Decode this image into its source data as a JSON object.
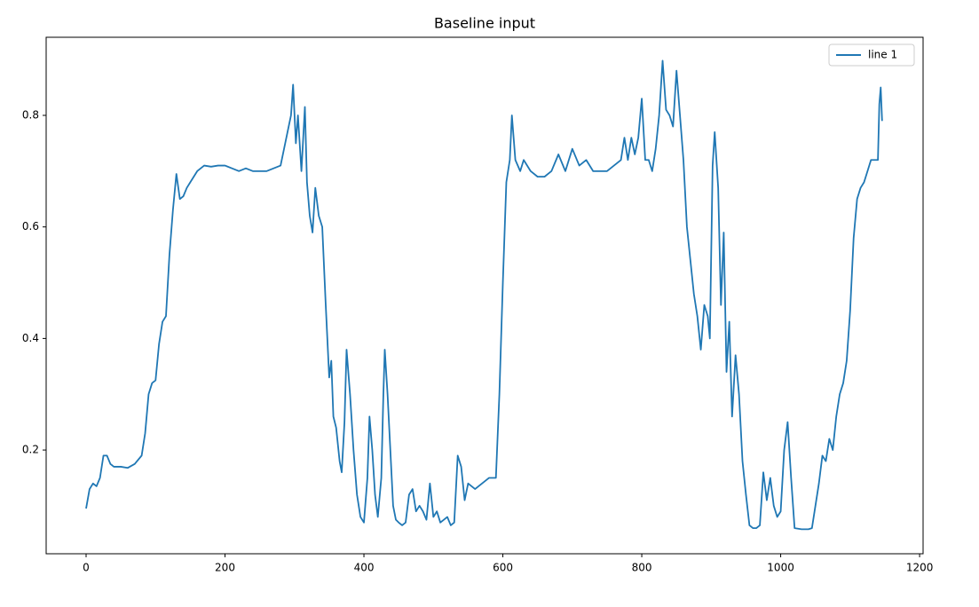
{
  "chart_data": {
    "type": "line",
    "title": "Baseline input",
    "x": [
      0,
      5,
      10,
      15,
      20,
      25,
      30,
      35,
      40,
      50,
      60,
      70,
      80,
      85,
      90,
      95,
      100,
      105,
      110,
      115,
      120,
      125,
      130,
      135,
      140,
      145,
      150,
      160,
      170,
      180,
      190,
      200,
      210,
      220,
      230,
      240,
      250,
      260,
      270,
      280,
      285,
      290,
      295,
      298,
      302,
      305,
      310,
      315,
      318,
      322,
      326,
      330,
      335,
      340,
      345,
      350,
      353,
      356,
      360,
      365,
      368,
      372,
      375,
      380,
      385,
      390,
      395,
      400,
      405,
      408,
      412,
      416,
      420,
      425,
      428,
      430,
      434,
      438,
      442,
      446,
      450,
      455,
      460,
      465,
      470,
      475,
      480,
      485,
      490,
      495,
      500,
      505,
      510,
      520,
      525,
      530,
      535,
      540,
      545,
      550,
      560,
      570,
      580,
      590,
      595,
      600,
      605,
      610,
      613,
      618,
      625,
      630,
      640,
      650,
      660,
      670,
      680,
      690,
      700,
      710,
      720,
      730,
      740,
      750,
      760,
      770,
      775,
      780,
      785,
      790,
      795,
      800,
      805,
      810,
      815,
      820,
      825,
      830,
      835,
      840,
      845,
      850,
      855,
      860,
      865,
      870,
      875,
      880,
      885,
      890,
      895,
      898,
      902,
      905,
      910,
      914,
      918,
      922,
      926,
      930,
      935,
      940,
      945,
      950,
      955,
      960,
      965,
      970,
      975,
      980,
      985,
      990,
      995,
      1000,
      1005,
      1010,
      1015,
      1020,
      1030,
      1040,
      1045,
      1050,
      1055,
      1060,
      1065,
      1070,
      1075,
      1080,
      1085,
      1090,
      1095,
      1100,
      1105,
      1110,
      1115,
      1120,
      1125,
      1130,
      1135,
      1140,
      1142,
      1144,
      1146
    ],
    "series": [
      {
        "name": "line 1",
        "color": "#1f77b4",
        "values": [
          0.095,
          0.13,
          0.14,
          0.135,
          0.15,
          0.19,
          0.19,
          0.175,
          0.17,
          0.17,
          0.168,
          0.175,
          0.19,
          0.23,
          0.3,
          0.32,
          0.325,
          0.39,
          0.43,
          0.44,
          0.55,
          0.63,
          0.695,
          0.65,
          0.655,
          0.67,
          0.68,
          0.7,
          0.71,
          0.708,
          0.71,
          0.71,
          0.705,
          0.7,
          0.705,
          0.7,
          0.7,
          0.7,
          0.705,
          0.71,
          0.74,
          0.77,
          0.8,
          0.855,
          0.75,
          0.8,
          0.7,
          0.815,
          0.68,
          0.62,
          0.59,
          0.67,
          0.62,
          0.6,
          0.46,
          0.33,
          0.36,
          0.26,
          0.24,
          0.18,
          0.16,
          0.25,
          0.38,
          0.3,
          0.2,
          0.12,
          0.08,
          0.07,
          0.15,
          0.26,
          0.2,
          0.12,
          0.08,
          0.15,
          0.3,
          0.38,
          0.3,
          0.2,
          0.1,
          0.075,
          0.07,
          0.065,
          0.07,
          0.12,
          0.13,
          0.09,
          0.1,
          0.09,
          0.075,
          0.14,
          0.08,
          0.09,
          0.07,
          0.08,
          0.065,
          0.07,
          0.19,
          0.17,
          0.11,
          0.14,
          0.13,
          0.14,
          0.15,
          0.15,
          0.3,
          0.5,
          0.68,
          0.72,
          0.8,
          0.72,
          0.7,
          0.72,
          0.7,
          0.69,
          0.69,
          0.7,
          0.73,
          0.7,
          0.74,
          0.71,
          0.72,
          0.7,
          0.7,
          0.7,
          0.71,
          0.72,
          0.76,
          0.72,
          0.76,
          0.73,
          0.76,
          0.83,
          0.72,
          0.72,
          0.7,
          0.74,
          0.8,
          0.898,
          0.81,
          0.8,
          0.78,
          0.88,
          0.8,
          0.72,
          0.6,
          0.54,
          0.48,
          0.44,
          0.38,
          0.46,
          0.44,
          0.4,
          0.71,
          0.77,
          0.67,
          0.46,
          0.59,
          0.34,
          0.43,
          0.26,
          0.37,
          0.3,
          0.18,
          0.12,
          0.065,
          0.06,
          0.06,
          0.065,
          0.16,
          0.11,
          0.15,
          0.1,
          0.08,
          0.09,
          0.2,
          0.25,
          0.15,
          0.06,
          0.058,
          0.058,
          0.06,
          0.1,
          0.14,
          0.19,
          0.18,
          0.22,
          0.2,
          0.26,
          0.3,
          0.32,
          0.36,
          0.45,
          0.58,
          0.65,
          0.67,
          0.68,
          0.7,
          0.72,
          0.72,
          0.72,
          0.82,
          0.85,
          0.79
        ]
      }
    ],
    "xlim": [
      -57.5,
      1205
    ],
    "ylim": [
      0.014,
      0.94
    ],
    "xticks": [
      0,
      200,
      400,
      600,
      800,
      1000,
      1200
    ],
    "yticks": [
      {
        "value": 0.2,
        "label": "0.2"
      },
      {
        "value": 0.4,
        "label": "0.4"
      },
      {
        "value": 0.6,
        "label": "0.6"
      },
      {
        "value": 0.8,
        "label": "0.8"
      }
    ],
    "legend": "upper right"
  }
}
